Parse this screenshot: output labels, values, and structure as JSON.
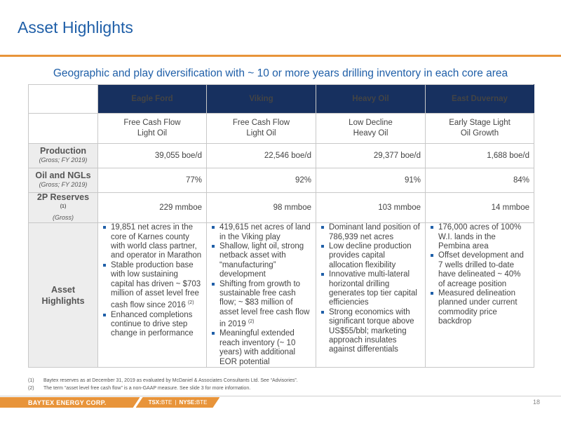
{
  "title": "Asset Highlights",
  "subtitle": "Geographic and play diversification with ~ 10 or more years drilling inventory in each core area",
  "table": {
    "columns": [
      "Eagle Ford",
      "Viking",
      "Heavy Oil",
      "East Duvernay"
    ],
    "types": [
      [
        "Free Cash Flow",
        "Light Oil"
      ],
      [
        "Free Cash Flow",
        "Light Oil"
      ],
      [
        "Low Decline",
        "Heavy Oil"
      ],
      [
        "Early Stage Light",
        "Oil Growth"
      ]
    ],
    "rows": [
      {
        "label": "Production",
        "sub": "(Gross; FY 2019)",
        "values": [
          "39,055 boe/d",
          "22,546 boe/d",
          "29,377 boe/d",
          "1,688 boe/d"
        ]
      },
      {
        "label": "Oil and NGLs",
        "sub": "(Gross; FY 2019)",
        "values": [
          "77%",
          "92%",
          "91%",
          "84%"
        ]
      },
      {
        "label": "2P Reserves",
        "label_sup": "(1)",
        "sub": "(Gross)",
        "values": [
          "229 mmboe",
          "98 mmboe",
          "103 mmboe",
          "14 mmboe"
        ]
      }
    ],
    "highlights_label": [
      "Asset",
      "Highlights"
    ],
    "highlights": {
      "eagle_ford": [
        "19,851 net acres in the core of Karnes county with world class partner, and operator in Marathon",
        "Stable production base with low sustaining capital has driven ~ $703 million of asset level free cash flow since 2016",
        "Enhanced completions continue to drive step change in performance"
      ],
      "eagle_ford_sup": "(2)",
      "viking": [
        "419,615 net acres of land in the Viking play",
        "Shallow, light oil, strong netback asset with “manufacturing” development",
        "Shifting from growth to sustainable free cash flow; ~ $83 million of asset level free cash flow in 2019",
        "Meaningful extended reach inventory (~ 10 years) with additional EOR potential"
      ],
      "viking_sup": "(2)",
      "heavy_oil": [
        "Dominant land position of 786,939 net acres",
        "Low decline production provides capital allocation flexibility",
        "Innovative multi-lateral horizontal drilling generates top tier capital efficiencies",
        "Strong economics with significant torque above US$55/bbl; marketing approach insulates against differentials"
      ],
      "east_duvernay": [
        "176,000 acres of 100% W.I. lands in the Pembina area",
        "Offset development and 7 wells drilled to-date have delineated ~ 40% of acreage position",
        "Measured delineation planned under current commodity price backdrop"
      ]
    }
  },
  "footnotes": [
    {
      "num": "(1)",
      "text": "Baytex reserves as at December 31, 2019 as evaluated by McDaniel & Associates Consultants Ltd. See “Advisories”."
    },
    {
      "num": "(2)",
      "text": "The term “asset level free cash flow” is a non-GAAP measure. See slide 3 for more information."
    }
  ],
  "footer": {
    "brand": "BAYTEX ENERGY CORP.",
    "tsx_label": "TSX:",
    "tsx_symbol": "BTE",
    "nyse_label": "NYSE:",
    "nyse_symbol": "BTE",
    "separator": "|",
    "page": "18"
  },
  "colors": {
    "title_blue": "#1f5fa8",
    "header_navy": "#17305f",
    "accent_orange": "#e8943a",
    "label_gray": "#ededed"
  }
}
